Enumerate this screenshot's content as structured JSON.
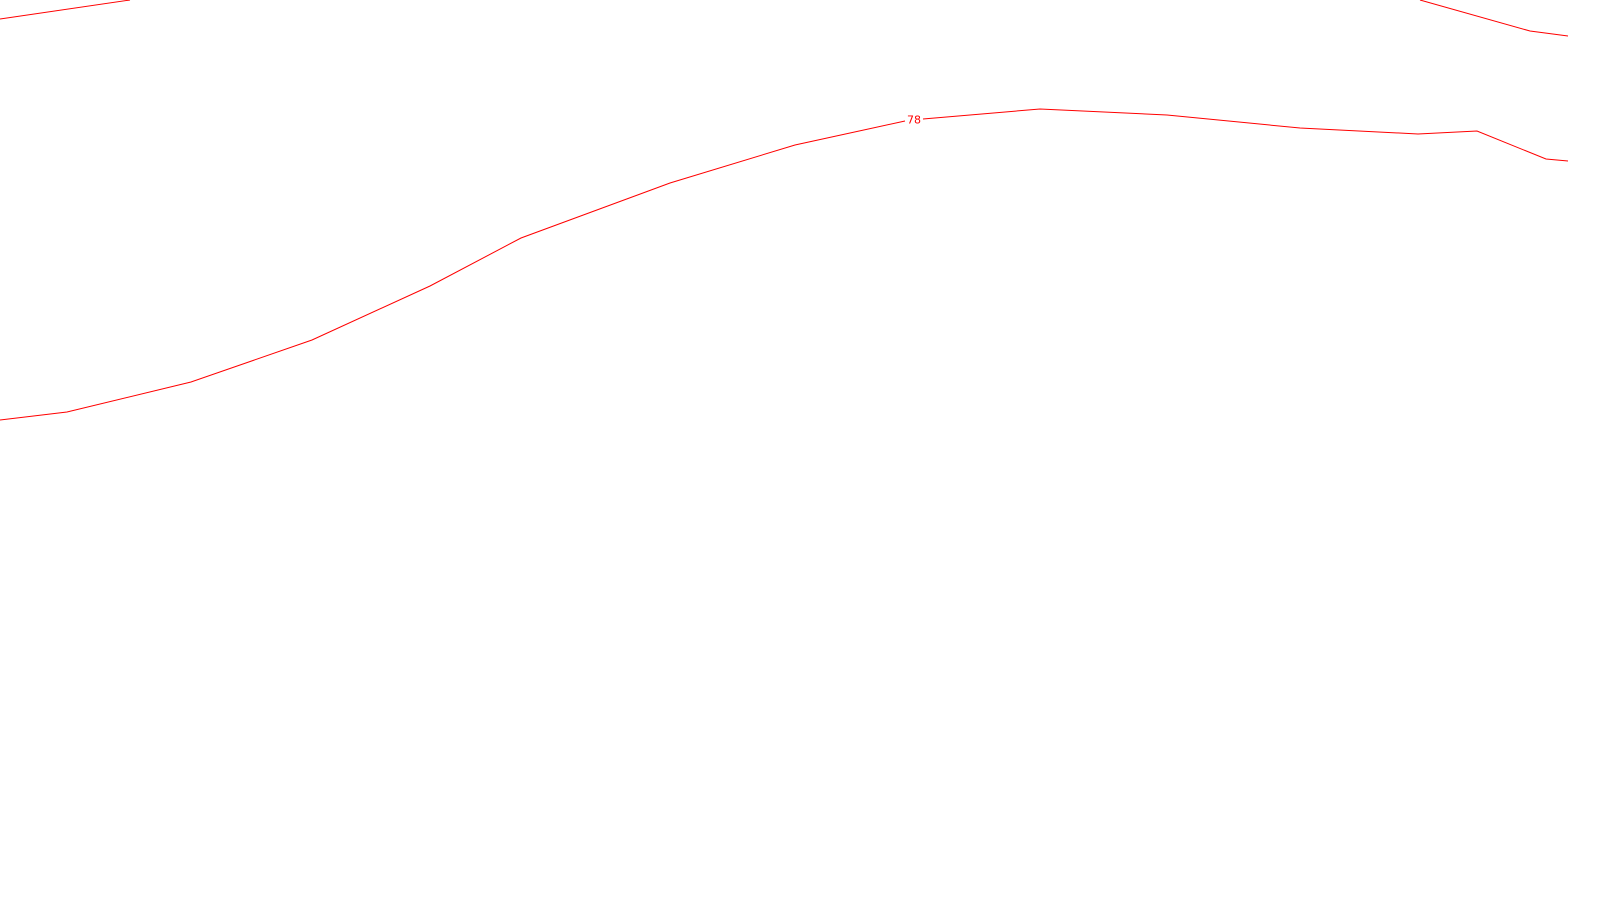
{
  "map": {
    "contour_color": "#ff0000",
    "background_color": "#ffffff",
    "contours": [
      {
        "id": "upper-left",
        "label": ""
      },
      {
        "id": "upper-right",
        "label": ""
      },
      {
        "id": "main",
        "label": "78"
      }
    ]
  }
}
